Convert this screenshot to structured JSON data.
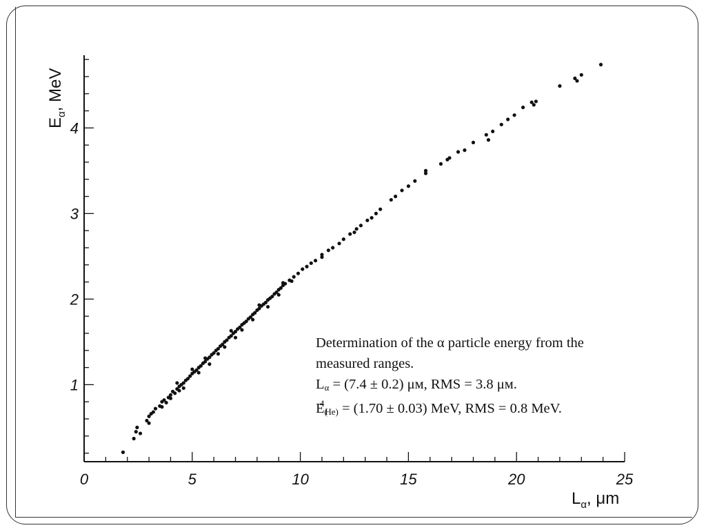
{
  "chart_data": {
    "type": "scatter",
    "xlabel": {
      "main": "L",
      "sub": "α",
      "unit": ", μm"
    },
    "ylabel": {
      "main": "E",
      "sub": "α",
      "unit": ", MeV"
    },
    "xlim": [
      0,
      25
    ],
    "ylim": [
      0.1,
      4.85
    ],
    "xticks": [
      "0",
      "5",
      "10",
      "15",
      "20",
      "25"
    ],
    "yticks": [
      "1",
      "2",
      "3",
      "4"
    ],
    "grid": false,
    "marker_color": "#111111",
    "points": [
      [
        1.8,
        0.21
      ],
      [
        2.3,
        0.37
      ],
      [
        2.4,
        0.45
      ],
      [
        2.45,
        0.5
      ],
      [
        2.6,
        0.43
      ],
      [
        2.9,
        0.58
      ],
      [
        3.0,
        0.63
      ],
      [
        3.1,
        0.66
      ],
      [
        3.2,
        0.68
      ],
      [
        3.0,
        0.55
      ],
      [
        3.5,
        0.75
      ],
      [
        3.6,
        0.8
      ],
      [
        3.7,
        0.82
      ],
      [
        3.8,
        0.79
      ],
      [
        3.9,
        0.85
      ],
      [
        4.0,
        0.88
      ],
      [
        4.1,
        0.92
      ],
      [
        4.2,
        0.9
      ],
      [
        4.3,
        0.95
      ],
      [
        4.4,
        0.98
      ],
      [
        4.5,
        1.0
      ],
      [
        4.6,
        1.02
      ],
      [
        4.7,
        1.05
      ],
      [
        4.8,
        1.07
      ],
      [
        4.9,
        1.1
      ],
      [
        5.0,
        1.13
      ],
      [
        5.1,
        1.15
      ],
      [
        5.2,
        1.17
      ],
      [
        5.3,
        1.2
      ],
      [
        5.4,
        1.22
      ],
      [
        5.5,
        1.25
      ],
      [
        5.6,
        1.27
      ],
      [
        5.7,
        1.3
      ],
      [
        5.8,
        1.32
      ],
      [
        5.9,
        1.35
      ],
      [
        6.0,
        1.37
      ],
      [
        6.1,
        1.4
      ],
      [
        6.2,
        1.42
      ],
      [
        6.3,
        1.45
      ],
      [
        6.4,
        1.47
      ],
      [
        6.5,
        1.5
      ],
      [
        6.6,
        1.52
      ],
      [
        6.7,
        1.55
      ],
      [
        6.8,
        1.57
      ],
      [
        6.9,
        1.6
      ],
      [
        7.0,
        1.62
      ],
      [
        7.1,
        1.65
      ],
      [
        7.2,
        1.67
      ],
      [
        7.3,
        1.7
      ],
      [
        7.4,
        1.72
      ],
      [
        7.5,
        1.74
      ],
      [
        7.6,
        1.77
      ],
      [
        7.7,
        1.79
      ],
      [
        7.8,
        1.82
      ],
      [
        7.9,
        1.84
      ],
      [
        8.0,
        1.87
      ],
      [
        8.1,
        1.89
      ],
      [
        8.2,
        1.92
      ],
      [
        8.3,
        1.94
      ],
      [
        8.4,
        1.96
      ],
      [
        8.5,
        1.99
      ],
      [
        8.6,
        2.01
      ],
      [
        8.7,
        2.03
      ],
      [
        8.8,
        2.06
      ],
      [
        8.9,
        2.08
      ],
      [
        9.0,
        2.11
      ],
      [
        9.1,
        2.13
      ],
      [
        9.2,
        2.16
      ],
      [
        9.3,
        2.18
      ],
      [
        9.5,
        2.22
      ],
      [
        9.7,
        2.26
      ],
      [
        9.9,
        2.3
      ],
      [
        10.1,
        2.35
      ],
      [
        10.5,
        2.42
      ],
      [
        10.7,
        2.45
      ],
      [
        11.0,
        2.52
      ],
      [
        11.3,
        2.57
      ],
      [
        11.5,
        2.6
      ],
      [
        11.8,
        2.65
      ],
      [
        12.0,
        2.7
      ],
      [
        12.3,
        2.76
      ],
      [
        12.6,
        2.82
      ],
      [
        12.8,
        2.86
      ],
      [
        13.1,
        2.92
      ],
      [
        13.5,
        3.0
      ],
      [
        13.7,
        3.05
      ],
      [
        14.2,
        3.16
      ],
      [
        14.4,
        3.2
      ],
      [
        14.7,
        3.27
      ],
      [
        15.0,
        3.32
      ],
      [
        15.3,
        3.38
      ],
      [
        15.8,
        3.47
      ],
      [
        16.5,
        3.58
      ],
      [
        16.8,
        3.63
      ],
      [
        17.3,
        3.72
      ],
      [
        17.6,
        3.74
      ],
      [
        18.0,
        3.83
      ],
      [
        18.6,
        3.92
      ],
      [
        18.9,
        3.96
      ],
      [
        19.3,
        4.04
      ],
      [
        19.6,
        4.1
      ],
      [
        19.9,
        4.15
      ],
      [
        20.3,
        4.24
      ],
      [
        20.7,
        4.3
      ],
      [
        20.9,
        4.31
      ],
      [
        22.0,
        4.49
      ],
      [
        22.7,
        4.58
      ],
      [
        23.0,
        4.62
      ],
      [
        23.9,
        4.74
      ],
      [
        4.3,
        1.02
      ],
      [
        4.6,
        0.96
      ],
      [
        5.0,
        1.18
      ],
      [
        5.3,
        1.14
      ],
      [
        5.6,
        1.31
      ],
      [
        5.8,
        1.24
      ],
      [
        6.2,
        1.36
      ],
      [
        6.5,
        1.44
      ],
      [
        6.8,
        1.63
      ],
      [
        7.0,
        1.55
      ],
      [
        7.3,
        1.64
      ],
      [
        7.8,
        1.76
      ],
      [
        8.1,
        1.93
      ],
      [
        8.5,
        1.91
      ],
      [
        9.0,
        2.05
      ],
      [
        9.2,
        2.19
      ],
      [
        9.6,
        2.21
      ],
      [
        10.3,
        2.38
      ],
      [
        11.0,
        2.49
      ],
      [
        12.5,
        2.78
      ],
      [
        13.3,
        2.95
      ],
      [
        15.8,
        3.5
      ],
      [
        16.9,
        3.65
      ],
      [
        18.7,
        3.86
      ],
      [
        20.8,
        4.27
      ],
      [
        22.8,
        4.55
      ],
      [
        3.3,
        0.72
      ],
      [
        3.6,
        0.74
      ],
      [
        4.0,
        0.84
      ],
      [
        4.4,
        0.93
      ]
    ]
  },
  "annotation": {
    "line1": "Determination of the α particle energy from the",
    "line2": "measured ranges.",
    "line3_main": "L",
    "line3_sub": "α",
    "line3_rest": " = (7.4 ± 0.2) μм, RMS = 3.8 μм.",
    "line4_main": "E",
    "line4_sub_pre": "(",
    "line4_sup": "4",
    "line4_sub_post": "He)",
    "line4_rest": " = (1.70 ± 0.03) MeV, RMS = 0.8 MeV."
  }
}
